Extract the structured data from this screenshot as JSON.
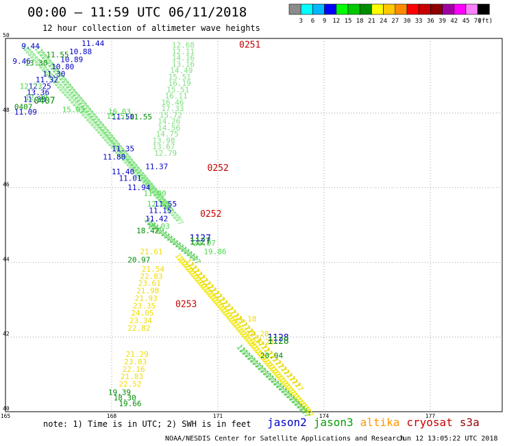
{
  "header": {
    "title": "00:00 – 11:59 UTC 06/11/2018",
    "subtitle": "12 hour collection of altimeter wave heights"
  },
  "colorbar": {
    "colors": [
      "#8c8c8c",
      "#00ffff",
      "#00b8ff",
      "#0000ff",
      "#00ff00",
      "#00c800",
      "#008c00",
      "#ffff00",
      "#ffc800",
      "#ff8c00",
      "#ff0000",
      "#c80000",
      "#8c0000",
      "#a000a0",
      "#ff00ff",
      "#ff80ff",
      "#000000"
    ],
    "labels": [
      "3",
      "6",
      "9",
      "12",
      "15",
      "18",
      "21",
      "24",
      "27",
      "30",
      "33",
      "36",
      "39",
      "42",
      "45",
      "70"
    ],
    "unit": "(ft)"
  },
  "chart_data": {
    "type": "scatter",
    "xlim": [
      165,
      180
    ],
    "ylim": [
      40,
      50
    ],
    "x_ticks": [
      "165",
      "168",
      "171",
      "174",
      "177"
    ],
    "y_ticks": [
      "50",
      "48",
      "46",
      "44",
      "42",
      "40"
    ],
    "grid": true,
    "pass_times": [
      {
        "label": "0251",
        "lon": 171.6,
        "lat": 49.75
      },
      {
        "label": "0252",
        "lon": 170.7,
        "lat": 46.45
      },
      {
        "label": "0252",
        "lon": 170.5,
        "lat": 45.22
      },
      {
        "label": "0253",
        "lon": 169.8,
        "lat": 42.8
      },
      {
        "label": "1127",
        "lon": 170.2,
        "lat": 44.57
      },
      {
        "label": "1127",
        "lon": 170.2,
        "lat": 44.48
      },
      {
        "label": "1128",
        "lon": 172.4,
        "lat": 41.9
      },
      {
        "label": "1128",
        "lon": 172.4,
        "lat": 41.82
      },
      {
        "label": "0407",
        "lon": 165.8,
        "lat": 48.25
      }
    ],
    "series": [
      {
        "name": "jason2",
        "color": "#0000c8",
        "points": [
          {
            "lon": 165.45,
            "lat": 49.72,
            "v": "9.44"
          },
          {
            "lon": 167.15,
            "lat": 49.8,
            "v": "11.44"
          },
          {
            "lon": 166.8,
            "lat": 49.58,
            "v": "10.88"
          },
          {
            "lon": 166.55,
            "lat": 49.37,
            "v": "10.89"
          },
          {
            "lon": 165.2,
            "lat": 49.32,
            "v": "9.46"
          },
          {
            "lon": 166.3,
            "lat": 49.17,
            "v": "10.80"
          },
          {
            "lon": 166.05,
            "lat": 48.98,
            "v": "11.30"
          },
          {
            "lon": 165.85,
            "lat": 48.82,
            "v": "11.32"
          },
          {
            "lon": 165.65,
            "lat": 48.65,
            "v": "12.25"
          },
          {
            "lon": 165.6,
            "lat": 48.48,
            "v": "13.36"
          },
          {
            "lon": 165.5,
            "lat": 48.3,
            "v": "11.33"
          },
          {
            "lon": 165.25,
            "lat": 47.96,
            "v": "11.09"
          },
          {
            "lon": 168.0,
            "lat": 47.83,
            "v": "11.50"
          },
          {
            "lon": 168.0,
            "lat": 46.98,
            "v": "11.35"
          },
          {
            "lon": 167.75,
            "lat": 46.76,
            "v": "11.80"
          },
          {
            "lon": 168.95,
            "lat": 46.5,
            "v": "11.37"
          },
          {
            "lon": 168.0,
            "lat": 46.36,
            "v": "11.40"
          },
          {
            "lon": 168.2,
            "lat": 46.19,
            "v": "11.01"
          },
          {
            "lon": 168.45,
            "lat": 45.94,
            "v": "11.94"
          },
          {
            "lon": 169.2,
            "lat": 45.5,
            "v": "11.55"
          },
          {
            "lon": 169.05,
            "lat": 45.32,
            "v": "11.15"
          },
          {
            "lon": 168.95,
            "lat": 45.1,
            "v": "11.42"
          }
        ]
      },
      {
        "name": "jason3",
        "color": "#008c00",
        "points": [
          {
            "lon": 166.15,
            "lat": 49.49,
            "v": "11.55"
          },
          {
            "lon": 165.55,
            "lat": 49.27,
            "v": "13.30"
          },
          {
            "lon": 165.25,
            "lat": 48.1,
            "v": "0407"
          },
          {
            "lon": 168.5,
            "lat": 47.83,
            "v": "11.55"
          },
          {
            "lon": 168.7,
            "lat": 44.78,
            "v": "18.42"
          },
          {
            "lon": 168.45,
            "lat": 44.0,
            "v": "20.97"
          },
          {
            "lon": 172.2,
            "lat": 41.43,
            "v": "20.94"
          },
          {
            "lon": 167.9,
            "lat": 40.45,
            "v": "19.39"
          },
          {
            "lon": 168.05,
            "lat": 40.3,
            "v": "18.30"
          }
        ]
      },
      {
        "name": "jason3-light",
        "color": "#4cd64c",
        "points": [
          {
            "lon": 165.4,
            "lat": 48.65,
            "v": "12.73"
          },
          {
            "lon": 165.55,
            "lat": 48.35,
            "v": "12.39"
          },
          {
            "lon": 166.6,
            "lat": 48.02,
            "v": "15.03"
          },
          {
            "lon": 167.9,
            "lat": 47.97,
            "v": "16.03"
          },
          {
            "lon": 167.85,
            "lat": 47.85,
            "v": "15.51"
          },
          {
            "lon": 168.9,
            "lat": 45.78,
            "v": "11.00"
          },
          {
            "lon": 169.0,
            "lat": 44.9,
            "v": "15.03"
          },
          {
            "lon": 170.3,
            "lat": 44.45,
            "v": "21.97"
          },
          {
            "lon": 170.6,
            "lat": 44.22,
            "v": "19.86"
          },
          {
            "lon": 169.0,
            "lat": 45.5,
            "v": "12.65"
          }
        ]
      },
      {
        "name": "jason3-light-column",
        "color": "#7ee07e",
        "points": [
          {
            "lon": 169.7,
            "lat": 49.75,
            "v": "12.68"
          },
          {
            "lon": 169.7,
            "lat": 49.58,
            "v": "12.11"
          },
          {
            "lon": 169.7,
            "lat": 49.41,
            "v": "14.16"
          },
          {
            "lon": 169.7,
            "lat": 49.24,
            "v": "13.16"
          },
          {
            "lon": 169.65,
            "lat": 49.07,
            "v": "14.49"
          },
          {
            "lon": 169.6,
            "lat": 48.9,
            "v": "15.51"
          },
          {
            "lon": 169.6,
            "lat": 48.73,
            "v": "16.19"
          },
          {
            "lon": 169.55,
            "lat": 48.56,
            "v": "15.51"
          },
          {
            "lon": 169.5,
            "lat": 48.39,
            "v": "16.11"
          },
          {
            "lon": 169.4,
            "lat": 48.22,
            "v": "16.46"
          },
          {
            "lon": 169.4,
            "lat": 48.05,
            "v": "17.33"
          },
          {
            "lon": 169.35,
            "lat": 47.88,
            "v": "15.72"
          },
          {
            "lon": 169.3,
            "lat": 47.71,
            "v": "14.26"
          },
          {
            "lon": 169.3,
            "lat": 47.54,
            "v": "14.56"
          },
          {
            "lon": 169.25,
            "lat": 47.37,
            "v": "14.75"
          },
          {
            "lon": 169.15,
            "lat": 47.2,
            "v": "13.98"
          },
          {
            "lon": 169.15,
            "lat": 47.03,
            "v": "13.67"
          },
          {
            "lon": 169.2,
            "lat": 46.86,
            "v": "12.79"
          }
        ]
      },
      {
        "name": "altika",
        "color": "#f0dc00",
        "points": [
          {
            "lon": 168.8,
            "lat": 44.22,
            "v": "21.61"
          },
          {
            "lon": 168.85,
            "lat": 43.75,
            "v": "21.54"
          },
          {
            "lon": 168.8,
            "lat": 43.56,
            "v": "22.83"
          },
          {
            "lon": 168.75,
            "lat": 43.37,
            "v": "23.61"
          },
          {
            "lon": 168.7,
            "lat": 43.17,
            "v": "21.98"
          },
          {
            "lon": 168.65,
            "lat": 42.97,
            "v": "21.93"
          },
          {
            "lon": 168.6,
            "lat": 42.77,
            "v": "23.35"
          },
          {
            "lon": 168.55,
            "lat": 42.57,
            "v": "24.05"
          },
          {
            "lon": 168.5,
            "lat": 42.37,
            "v": "23.34"
          },
          {
            "lon": 168.45,
            "lat": 42.17,
            "v": "22.82"
          },
          {
            "lon": 168.4,
            "lat": 41.47,
            "v": "21.29"
          },
          {
            "lon": 168.35,
            "lat": 41.27,
            "v": "23.83"
          },
          {
            "lon": 168.3,
            "lat": 41.07,
            "v": "22.16"
          },
          {
            "lon": 168.25,
            "lat": 40.87,
            "v": "21.83"
          },
          {
            "lon": 168.2,
            "lat": 40.67,
            "v": "22.52"
          },
          {
            "lon": 171.45,
            "lat": 42.42,
            "v": "24.18"
          },
          {
            "lon": 171.8,
            "lat": 42.02,
            "v": "24.28"
          },
          {
            "lon": 171.95,
            "lat": 41.8,
            "v": "24.23"
          }
        ]
      },
      {
        "name": "altika-low",
        "color": "#008c00",
        "points": [
          {
            "lon": 168.2,
            "lat": 40.15,
            "v": "19.66"
          }
        ]
      }
    ]
  },
  "footnote": "note: 1) Time is in UTC; 2) SWH is in feet",
  "satellites": [
    {
      "name": "jason2",
      "color": "#0000c8"
    },
    {
      "name": "jason3",
      "color": "#00a000"
    },
    {
      "name": "altika",
      "color": "#ff9600"
    },
    {
      "name": "cryosat",
      "color": "#c80000"
    },
    {
      "name": "s3a",
      "color": "#960000"
    }
  ],
  "credit": "NOAA/NESDIS Center for Satellite Applications and Research",
  "timestamp": "Jun 12 13:05:22 UTC 2018"
}
